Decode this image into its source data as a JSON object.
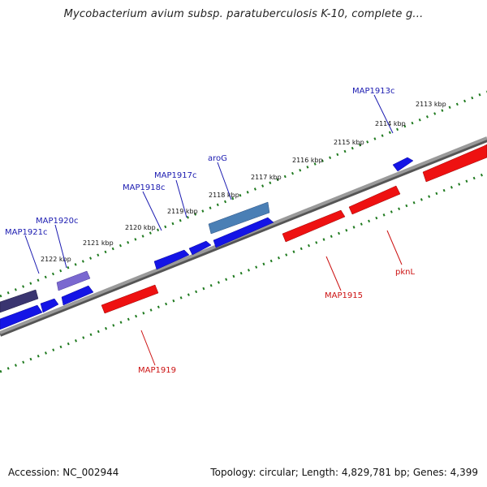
{
  "title": "Mycobacterium avium subsp. paratuberculosis K-10, complete g...",
  "footer": {
    "accession": "Accession: NC_002944",
    "summary": "Topology: circular; Length: 4,829,781 bp; Genes: 4,399"
  },
  "ticks": [
    "2113 kbp",
    "2114 kbp",
    "2115 kbp",
    "2116 kbp",
    "2117 kbp",
    "2118 kbp",
    "2119 kbp",
    "2120 kbp",
    "2121 kbp",
    "2122 kbp"
  ],
  "genes_forward": [
    {
      "label": "MAP1913c"
    },
    {
      "label": "aroG"
    },
    {
      "label": "MAP1917c"
    },
    {
      "label": "MAP1918c"
    },
    {
      "label": "MAP1920c"
    },
    {
      "label": "MAP1921c"
    }
  ],
  "genes_reverse": [
    {
      "label": "pknL"
    },
    {
      "label": "MAP1915"
    },
    {
      "label": "MAP1919"
    }
  ],
  "colors": {
    "forward_gene": "#1414e6",
    "reverse_gene": "#ee1111",
    "highlight_gene": "#4a7fb5",
    "purple_gene": "#7a68d0",
    "dark_gene": "#3a3570",
    "backbone": "#7a7a7a",
    "tick": "#1f7a1f",
    "forward_label": "#1a1ab0",
    "reverse_label": "#cc1111"
  }
}
